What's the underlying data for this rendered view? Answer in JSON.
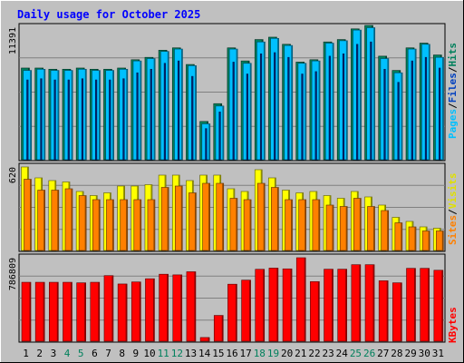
{
  "chart_data": [
    {
      "type": "bar",
      "title": "Daily usage for October 2025",
      "categories": [
        "1",
        "2",
        "3",
        "4",
        "5",
        "6",
        "7",
        "8",
        "9",
        "10",
        "11",
        "12",
        "13",
        "14",
        "15",
        "16",
        "17",
        "18",
        "19",
        "20",
        "21",
        "22",
        "23",
        "24",
        "25",
        "26",
        "27",
        "28",
        "29",
        "30",
        "31"
      ],
      "weekend_days": [
        "4",
        "5",
        "11",
        "12",
        "18",
        "19",
        "25",
        "26"
      ],
      "ytick": "11391",
      "ylim": [
        0,
        11391
      ],
      "grid": true,
      "series": [
        {
          "name": "Hits",
          "color": "#00805c",
          "values": [
            7800,
            7800,
            7700,
            7700,
            7800,
            7700,
            7700,
            7800,
            8500,
            8700,
            9300,
            9500,
            8100,
            3300,
            4800,
            9500,
            8400,
            10200,
            10400,
            9800,
            8300,
            8500,
            10000,
            10200,
            11100,
            11391,
            8800,
            7600,
            9500,
            9900,
            8900
          ]
        },
        {
          "name": "Files",
          "color": "#00c0ff",
          "values": [
            7600,
            7700,
            7600,
            7600,
            7700,
            7600,
            7600,
            7700,
            8400,
            8600,
            9200,
            9400,
            8000,
            3100,
            4600,
            9400,
            8200,
            10000,
            10300,
            9700,
            8200,
            8400,
            9900,
            10100,
            11000,
            11200,
            8600,
            7400,
            9400,
            9800,
            8700
          ]
        },
        {
          "name": "Pages",
          "color": "#0040c0",
          "values": [
            6800,
            6900,
            6800,
            6800,
            6900,
            6800,
            6800,
            6900,
            7400,
            7700,
            8200,
            8400,
            7100,
            2700,
            4100,
            8300,
            7300,
            9000,
            9100,
            8700,
            7300,
            7500,
            8800,
            9000,
            9800,
            10000,
            7700,
            6600,
            8400,
            8700,
            7800
          ]
        }
      ]
    },
    {
      "type": "bar",
      "ytick": "620",
      "ylim": [
        0,
        620
      ],
      "grid": true,
      "series": [
        {
          "name": "Visits",
          "color": "#ffff00",
          "values": [
            620,
            540,
            520,
            510,
            440,
            410,
            430,
            480,
            480,
            490,
            560,
            560,
            520,
            560,
            560,
            460,
            440,
            600,
            540,
            450,
            430,
            440,
            410,
            390,
            440,
            400,
            340,
            250,
            220,
            180,
            170
          ]
        },
        {
          "name": "Sites",
          "color": "#ff8000",
          "values": [
            530,
            450,
            450,
            460,
            410,
            380,
            380,
            380,
            380,
            380,
            470,
            480,
            430,
            500,
            500,
            390,
            380,
            500,
            470,
            380,
            380,
            380,
            340,
            330,
            390,
            330,
            300,
            210,
            180,
            150,
            150
          ]
        }
      ]
    },
    {
      "type": "bar",
      "ytick": "786809",
      "ylim": [
        0,
        786809
      ],
      "grid": true,
      "series": [
        {
          "name": "KBytes",
          "color": "#ff0000",
          "values": [
            558000,
            558000,
            558000,
            558000,
            553000,
            558000,
            620000,
            542000,
            561000,
            591000,
            633000,
            627000,
            656000,
            43000,
            249000,
            540000,
            578000,
            679000,
            690000,
            683000,
            786809,
            564000,
            680000,
            680000,
            722000,
            722000,
            572000,
            553000,
            688000,
            688000,
            670000
          ]
        }
      ]
    }
  ],
  "legend": {
    "hits": "Hits",
    "files": "Files",
    "pages": "Pages",
    "visits": "Visits",
    "sites": "Sites",
    "kbytes": "KBytes",
    "sep": "/"
  },
  "colors": {
    "background": "#c0c0c0",
    "title": "#0000ff",
    "weekend_label": "#00805c",
    "weekday_label": "#000000"
  }
}
